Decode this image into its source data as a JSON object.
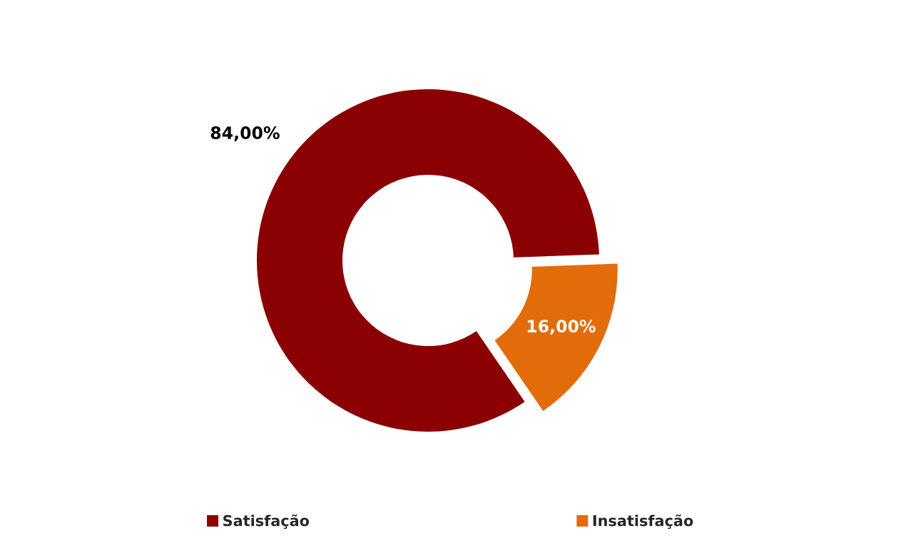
{
  "chart_data": {
    "type": "donut",
    "categories": [
      "Satisfação",
      "Insatisfação"
    ],
    "values": [
      84,
      16
    ],
    "colors": [
      "#8b0000",
      "#e36c0a"
    ],
    "value_labels": [
      "84,00%",
      "16,00%"
    ],
    "legend": "bottom"
  }
}
